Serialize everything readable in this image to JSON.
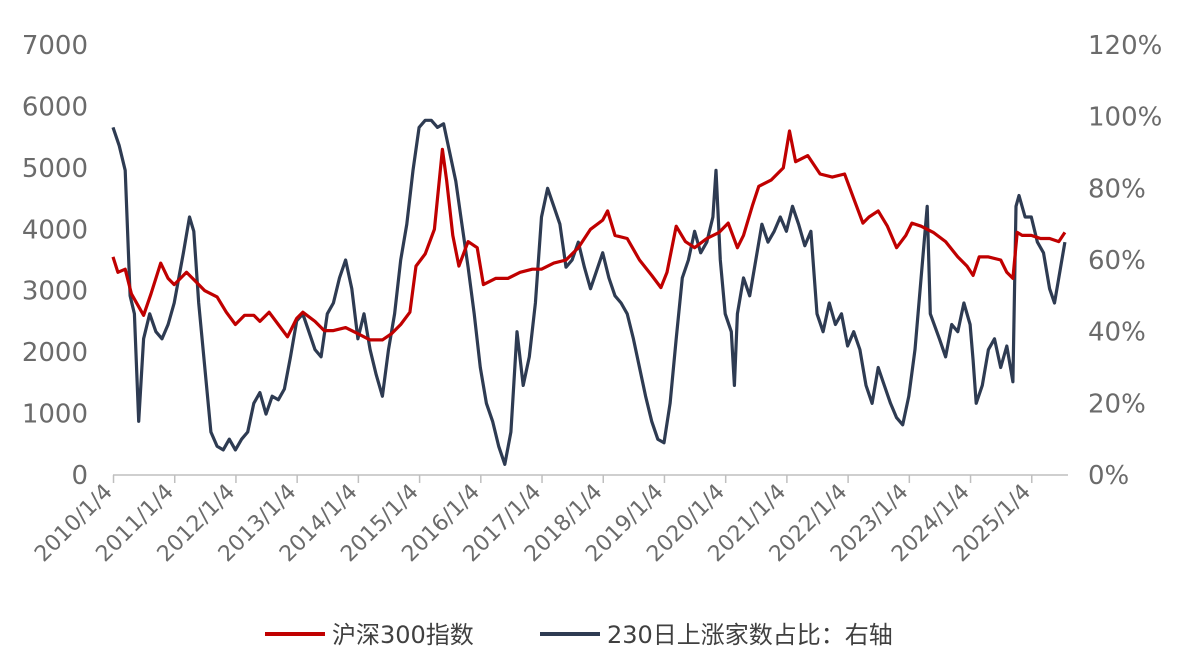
{
  "chart_data": {
    "type": "line",
    "title": "",
    "left_axis": {
      "min": 0,
      "max": 7000,
      "ticks": [
        "7000",
        "6000",
        "5000",
        "4000",
        "3000",
        "2000",
        "1000",
        "0"
      ]
    },
    "right_axis": {
      "min": 0,
      "max": 120,
      "ticks": [
        "120%",
        "100%",
        "80%",
        "60%",
        "40%",
        "20%",
        "0%"
      ]
    },
    "x_start": 2010.0,
    "x_end": 2025.6,
    "x_ticks": [
      "2010/1/4",
      "2011/1/4",
      "2012/1/4",
      "2013/1/4",
      "2014/1/4",
      "2015/1/4",
      "2016/1/4",
      "2017/1/4",
      "2018/1/4",
      "2019/1/4",
      "2020/1/4",
      "2021/1/4",
      "2022/1/4",
      "2023/1/4",
      "2024/1/4",
      "2025/1/4"
    ],
    "legend_position": "bottom",
    "series": [
      {
        "name": "沪深300指数",
        "axis": "left",
        "color": "#c00000",
        "points": [
          [
            2010.0,
            3550
          ],
          [
            2010.08,
            3300
          ],
          [
            2010.2,
            3350
          ],
          [
            2010.3,
            2950
          ],
          [
            2010.5,
            2600
          ],
          [
            2010.62,
            2950
          ],
          [
            2010.78,
            3450
          ],
          [
            2010.9,
            3200
          ],
          [
            2011.0,
            3100
          ],
          [
            2011.2,
            3300
          ],
          [
            2011.3,
            3200
          ],
          [
            2011.5,
            3000
          ],
          [
            2011.7,
            2900
          ],
          [
            2011.85,
            2650
          ],
          [
            2012.0,
            2450
          ],
          [
            2012.15,
            2600
          ],
          [
            2012.3,
            2600
          ],
          [
            2012.4,
            2500
          ],
          [
            2012.55,
            2650
          ],
          [
            2012.7,
            2450
          ],
          [
            2012.85,
            2250
          ],
          [
            2013.0,
            2550
          ],
          [
            2013.1,
            2650
          ],
          [
            2013.3,
            2500
          ],
          [
            2013.45,
            2350
          ],
          [
            2013.6,
            2350
          ],
          [
            2013.8,
            2400
          ],
          [
            2014.0,
            2300
          ],
          [
            2014.2,
            2200
          ],
          [
            2014.4,
            2200
          ],
          [
            2014.55,
            2300
          ],
          [
            2014.7,
            2450
          ],
          [
            2014.85,
            2650
          ],
          [
            2014.95,
            3400
          ],
          [
            2015.1,
            3600
          ],
          [
            2015.25,
            4000
          ],
          [
            2015.38,
            5300
          ],
          [
            2015.45,
            4800
          ],
          [
            2015.55,
            3900
          ],
          [
            2015.65,
            3400
          ],
          [
            2015.8,
            3800
          ],
          [
            2015.95,
            3700
          ],
          [
            2016.05,
            3100
          ],
          [
            2016.25,
            3200
          ],
          [
            2016.45,
            3200
          ],
          [
            2016.65,
            3300
          ],
          [
            2016.85,
            3350
          ],
          [
            2017.0,
            3350
          ],
          [
            2017.2,
            3450
          ],
          [
            2017.4,
            3500
          ],
          [
            2017.6,
            3700
          ],
          [
            2017.8,
            4000
          ],
          [
            2018.0,
            4150
          ],
          [
            2018.08,
            4300
          ],
          [
            2018.2,
            3900
          ],
          [
            2018.4,
            3850
          ],
          [
            2018.6,
            3500
          ],
          [
            2018.8,
            3250
          ],
          [
            2018.95,
            3050
          ],
          [
            2019.05,
            3300
          ],
          [
            2019.2,
            4050
          ],
          [
            2019.35,
            3800
          ],
          [
            2019.5,
            3700
          ],
          [
            2019.7,
            3850
          ],
          [
            2019.9,
            3950
          ],
          [
            2020.05,
            4100
          ],
          [
            2020.2,
            3700
          ],
          [
            2020.3,
            3900
          ],
          [
            2020.45,
            4400
          ],
          [
            2020.55,
            4700
          ],
          [
            2020.75,
            4800
          ],
          [
            2020.95,
            5000
          ],
          [
            2021.05,
            5600
          ],
          [
            2021.15,
            5100
          ],
          [
            2021.35,
            5200
          ],
          [
            2021.55,
            4900
          ],
          [
            2021.75,
            4850
          ],
          [
            2021.95,
            4900
          ],
          [
            2022.1,
            4500
          ],
          [
            2022.25,
            4100
          ],
          [
            2022.35,
            4200
          ],
          [
            2022.5,
            4300
          ],
          [
            2022.65,
            4050
          ],
          [
            2022.8,
            3700
          ],
          [
            2022.95,
            3900
          ],
          [
            2023.05,
            4100
          ],
          [
            2023.2,
            4050
          ],
          [
            2023.4,
            3950
          ],
          [
            2023.6,
            3800
          ],
          [
            2023.8,
            3550
          ],
          [
            2023.95,
            3400
          ],
          [
            2024.05,
            3250
          ],
          [
            2024.15,
            3550
          ],
          [
            2024.3,
            3550
          ],
          [
            2024.5,
            3500
          ],
          [
            2024.6,
            3300
          ],
          [
            2024.7,
            3200
          ],
          [
            2024.77,
            3950
          ],
          [
            2024.85,
            3900
          ],
          [
            2025.0,
            3900
          ],
          [
            2025.15,
            3850
          ],
          [
            2025.3,
            3850
          ],
          [
            2025.45,
            3800
          ],
          [
            2025.55,
            3950
          ]
        ]
      },
      {
        "name": "230日上涨家数占比：右轴",
        "axis": "right",
        "color": "#2e3b52",
        "points": [
          [
            2010.0,
            97
          ],
          [
            2010.1,
            92
          ],
          [
            2010.2,
            85
          ],
          [
            2010.28,
            50
          ],
          [
            2010.35,
            45
          ],
          [
            2010.42,
            15
          ],
          [
            2010.5,
            38
          ],
          [
            2010.6,
            45
          ],
          [
            2010.7,
            40
          ],
          [
            2010.8,
            38
          ],
          [
            2010.9,
            42
          ],
          [
            2011.0,
            48
          ],
          [
            2011.15,
            62
          ],
          [
            2011.25,
            72
          ],
          [
            2011.32,
            68
          ],
          [
            2011.4,
            48
          ],
          [
            2011.5,
            30
          ],
          [
            2011.6,
            12
          ],
          [
            2011.7,
            8
          ],
          [
            2011.8,
            7
          ],
          [
            2011.9,
            10
          ],
          [
            2012.0,
            7
          ],
          [
            2012.1,
            10
          ],
          [
            2012.2,
            12
          ],
          [
            2012.3,
            20
          ],
          [
            2012.4,
            23
          ],
          [
            2012.5,
            17
          ],
          [
            2012.6,
            22
          ],
          [
            2012.7,
            21
          ],
          [
            2012.8,
            24
          ],
          [
            2012.9,
            33
          ],
          [
            2013.0,
            43
          ],
          [
            2013.1,
            45
          ],
          [
            2013.2,
            40
          ],
          [
            2013.3,
            35
          ],
          [
            2013.4,
            33
          ],
          [
            2013.5,
            45
          ],
          [
            2013.6,
            48
          ],
          [
            2013.7,
            55
          ],
          [
            2013.8,
            60
          ],
          [
            2013.9,
            52
          ],
          [
            2014.0,
            38
          ],
          [
            2014.1,
            45
          ],
          [
            2014.2,
            35
          ],
          [
            2014.3,
            28
          ],
          [
            2014.4,
            22
          ],
          [
            2014.5,
            35
          ],
          [
            2014.6,
            45
          ],
          [
            2014.7,
            60
          ],
          [
            2014.8,
            70
          ],
          [
            2014.9,
            85
          ],
          [
            2015.0,
            97
          ],
          [
            2015.1,
            99
          ],
          [
            2015.2,
            99
          ],
          [
            2015.3,
            97
          ],
          [
            2015.4,
            98
          ],
          [
            2015.5,
            90
          ],
          [
            2015.6,
            82
          ],
          [
            2015.7,
            70
          ],
          [
            2015.8,
            58
          ],
          [
            2015.9,
            45
          ],
          [
            2016.0,
            30
          ],
          [
            2016.1,
            20
          ],
          [
            2016.2,
            15
          ],
          [
            2016.3,
            8
          ],
          [
            2016.4,
            3
          ],
          [
            2016.5,
            12
          ],
          [
            2016.6,
            40
          ],
          [
            2016.7,
            25
          ],
          [
            2016.8,
            33
          ],
          [
            2016.9,
            48
          ],
          [
            2017.0,
            72
          ],
          [
            2017.1,
            80
          ],
          [
            2017.2,
            75
          ],
          [
            2017.3,
            70
          ],
          [
            2017.4,
            58
          ],
          [
            2017.5,
            60
          ],
          [
            2017.6,
            65
          ],
          [
            2017.7,
            58
          ],
          [
            2017.8,
            52
          ],
          [
            2017.9,
            57
          ],
          [
            2018.0,
            62
          ],
          [
            2018.1,
            55
          ],
          [
            2018.2,
            50
          ],
          [
            2018.3,
            48
          ],
          [
            2018.4,
            45
          ],
          [
            2018.5,
            38
          ],
          [
            2018.6,
            30
          ],
          [
            2018.7,
            22
          ],
          [
            2018.8,
            15
          ],
          [
            2018.9,
            10
          ],
          [
            2019.0,
            9
          ],
          [
            2019.1,
            20
          ],
          [
            2019.2,
            38
          ],
          [
            2019.3,
            55
          ],
          [
            2019.4,
            60
          ],
          [
            2019.5,
            68
          ],
          [
            2019.6,
            62
          ],
          [
            2019.7,
            65
          ],
          [
            2019.8,
            72
          ],
          [
            2019.85,
            85
          ],
          [
            2019.92,
            60
          ],
          [
            2020.0,
            45
          ],
          [
            2020.1,
            40
          ],
          [
            2020.15,
            25
          ],
          [
            2020.2,
            45
          ],
          [
            2020.3,
            55
          ],
          [
            2020.4,
            50
          ],
          [
            2020.5,
            60
          ],
          [
            2020.6,
            70
          ],
          [
            2020.7,
            65
          ],
          [
            2020.8,
            68
          ],
          [
            2020.9,
            72
          ],
          [
            2021.0,
            68
          ],
          [
            2021.1,
            75
          ],
          [
            2021.2,
            70
          ],
          [
            2021.3,
            64
          ],
          [
            2021.4,
            68
          ],
          [
            2021.5,
            45
          ],
          [
            2021.6,
            40
          ],
          [
            2021.7,
            48
          ],
          [
            2021.8,
            42
          ],
          [
            2021.9,
            45
          ],
          [
            2022.0,
            36
          ],
          [
            2022.1,
            40
          ],
          [
            2022.2,
            35
          ],
          [
            2022.3,
            25
          ],
          [
            2022.4,
            20
          ],
          [
            2022.5,
            30
          ],
          [
            2022.6,
            25
          ],
          [
            2022.7,
            20
          ],
          [
            2022.8,
            16
          ],
          [
            2022.9,
            14
          ],
          [
            2023.0,
            22
          ],
          [
            2023.1,
            35
          ],
          [
            2023.2,
            55
          ],
          [
            2023.3,
            75
          ],
          [
            2023.35,
            45
          ],
          [
            2023.5,
            38
          ],
          [
            2023.6,
            33
          ],
          [
            2023.7,
            42
          ],
          [
            2023.8,
            40
          ],
          [
            2023.9,
            48
          ],
          [
            2024.0,
            42
          ],
          [
            2024.05,
            32
          ],
          [
            2024.1,
            20
          ],
          [
            2024.2,
            25
          ],
          [
            2024.3,
            35
          ],
          [
            2024.4,
            38
          ],
          [
            2024.5,
            30
          ],
          [
            2024.6,
            36
          ],
          [
            2024.7,
            26
          ],
          [
            2024.75,
            75
          ],
          [
            2024.8,
            78
          ],
          [
            2024.9,
            72
          ],
          [
            2025.0,
            72
          ],
          [
            2025.1,
            65
          ],
          [
            2025.2,
            62
          ],
          [
            2025.3,
            52
          ],
          [
            2025.38,
            48
          ],
          [
            2025.45,
            55
          ],
          [
            2025.55,
            65
          ]
        ]
      }
    ]
  }
}
